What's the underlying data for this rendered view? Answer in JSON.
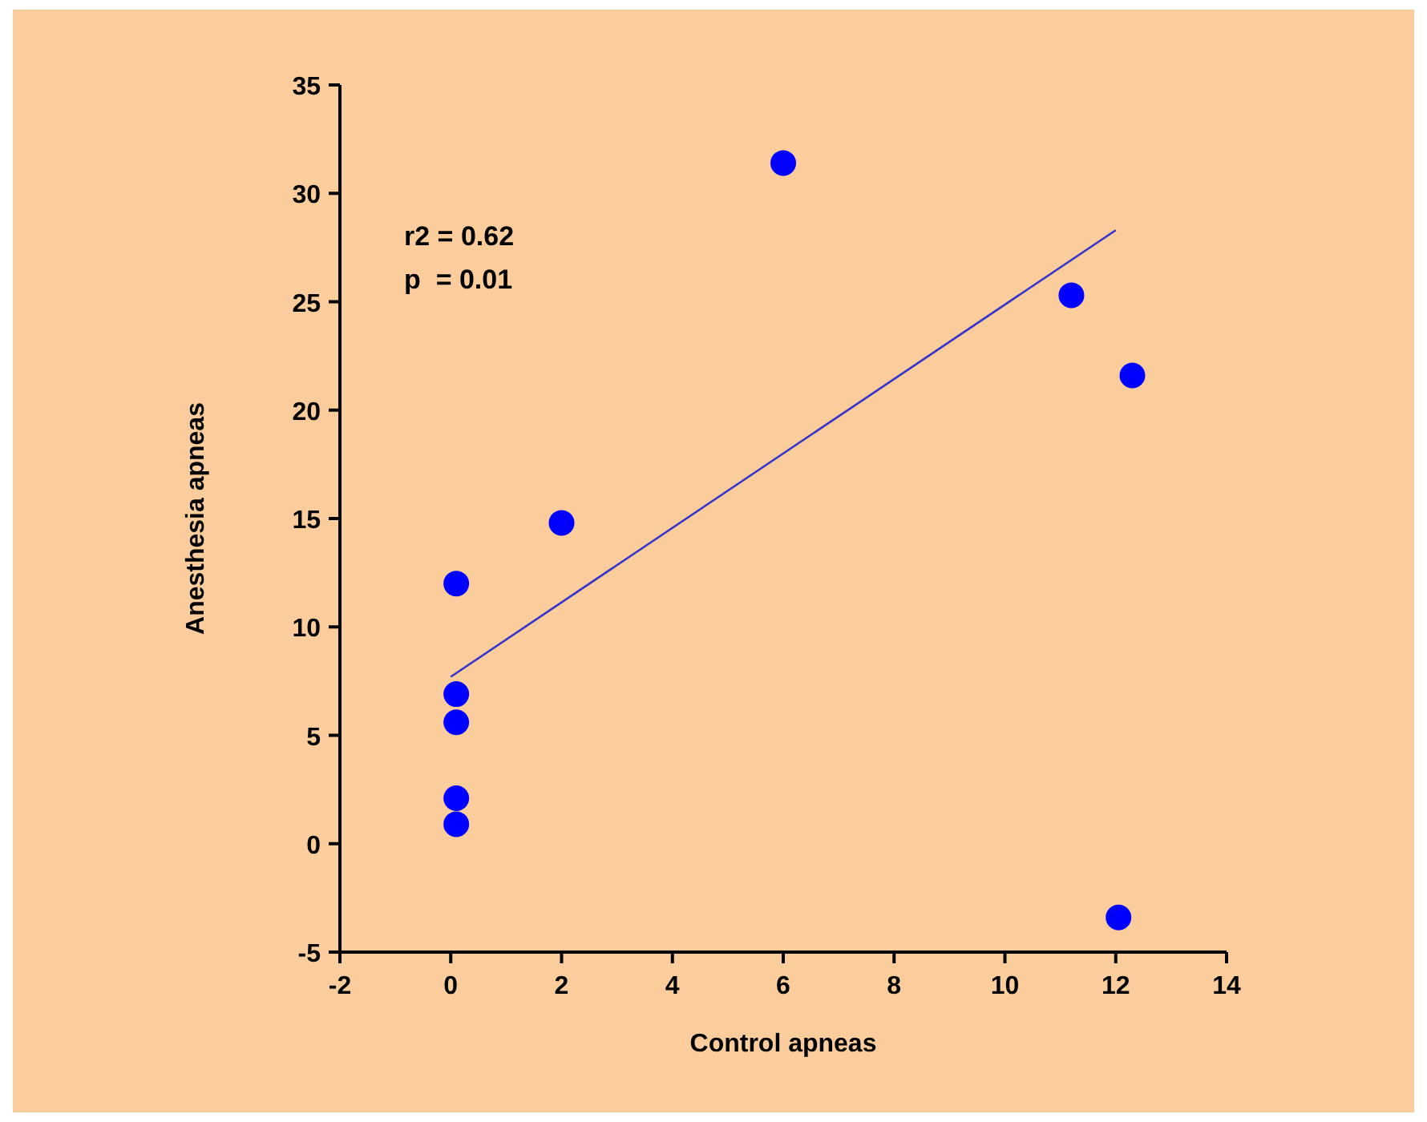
{
  "chart_data": {
    "type": "scatter",
    "xlabel": "Control apneas",
    "ylabel": "Anesthesia apneas",
    "annotations": [
      "r2 = 0.62",
      "p  = 0.01"
    ],
    "xlim": [
      -2,
      14
    ],
    "xticks": [
      -2,
      0,
      2,
      4,
      6,
      8,
      10,
      12,
      14
    ],
    "ylim": [
      -5,
      35
    ],
    "yticks": [
      -5,
      0,
      5,
      10,
      15,
      20,
      25,
      30,
      35
    ],
    "grid": false,
    "marker": "circle",
    "series": [
      {
        "color": "#0000ff",
        "x": [
          0.1,
          0.1,
          0.1,
          0.1,
          0.1,
          2,
          6,
          11.2,
          12.3,
          12.05
        ],
        "values": [
          12,
          6.9,
          5.6,
          2.1,
          0.9,
          14.8,
          31.4,
          25.3,
          21.6,
          -3.4
        ]
      },
      {
        "type": "line",
        "color": "#3333cc",
        "marker": "none",
        "x": [
          0,
          12
        ],
        "values": [
          7.7,
          28.3
        ]
      }
    ]
  }
}
